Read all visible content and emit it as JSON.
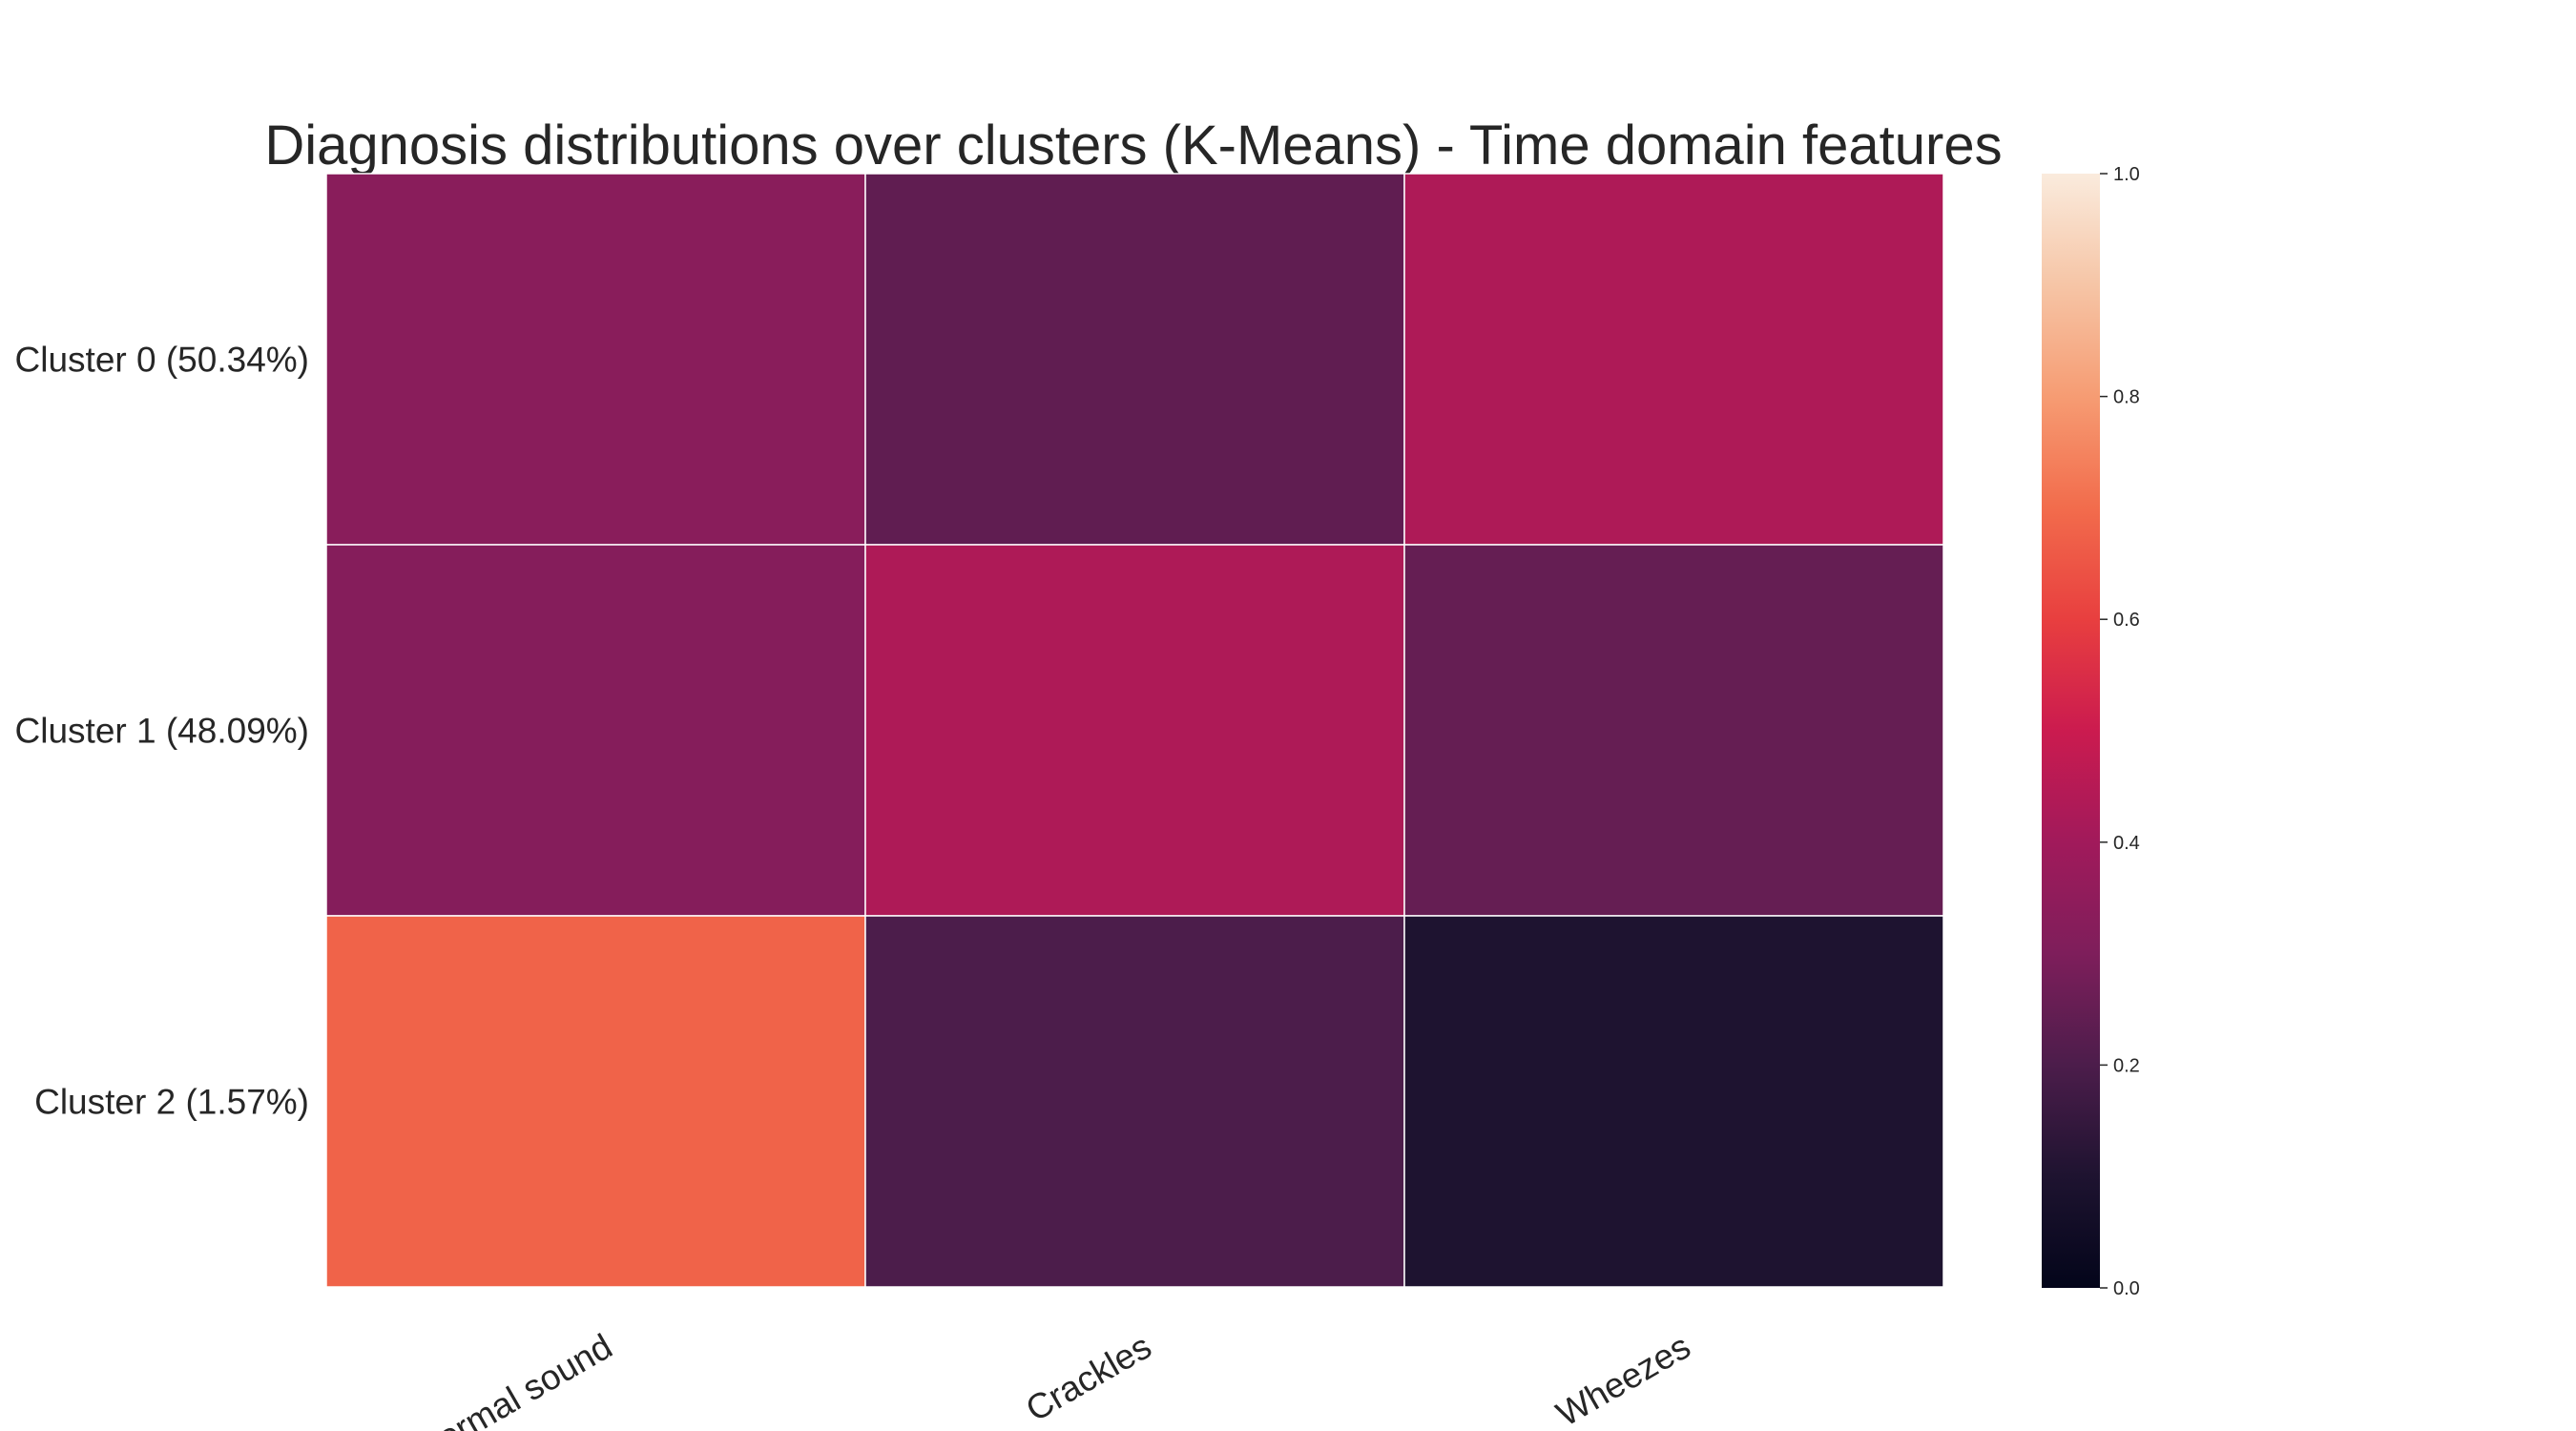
{
  "chart_data": {
    "type": "heatmap",
    "title": "Diagnosis distributions over clusters (K-Means) - Time domain features",
    "xlabel": "",
    "ylabel": "",
    "x_categories": [
      "Normal sound",
      "Crackles",
      "Wheezes"
    ],
    "y_categories": [
      "Cluster 0 (50.34%)",
      "Cluster 1 (48.09%)",
      "Cluster 2 (1.57%)"
    ],
    "values": [
      [
        0.33,
        0.24,
        0.43
      ],
      [
        0.32,
        0.43,
        0.25
      ],
      [
        0.68,
        0.2,
        0.1
      ]
    ],
    "colorscale": "rocket",
    "vmin": 0.0,
    "vmax": 1.0,
    "colorbar_ticks": [
      "0.0",
      "0.2",
      "0.4",
      "0.6",
      "0.8",
      "1.0"
    ],
    "cell_border_color": "#ffffff",
    "grid": false,
    "legend": "colorbar-right"
  }
}
